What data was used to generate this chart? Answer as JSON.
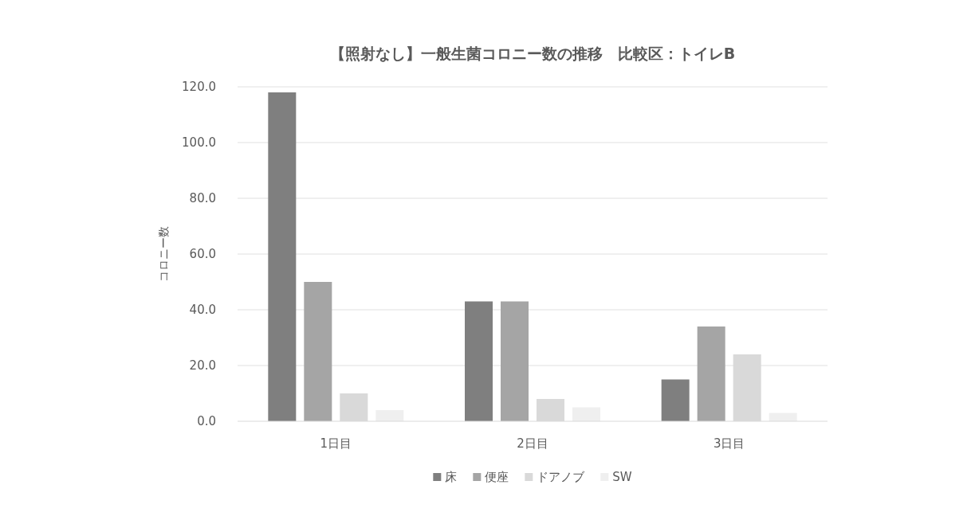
{
  "chart_data": {
    "type": "bar",
    "title": "【照射なし】一般生菌コロニー数の推移　比較区：トイレB",
    "ylabel": "コロニー数",
    "categories": [
      "1日目",
      "2日目",
      "3日目"
    ],
    "series": [
      {
        "name": "床",
        "color": "#7f7f7f",
        "values": [
          118,
          43,
          15
        ]
      },
      {
        "name": "便座",
        "color": "#a5a5a5",
        "values": [
          50,
          43,
          34
        ]
      },
      {
        "name": "ドアノブ",
        "color": "#d9d9d9",
        "values": [
          10,
          8,
          24
        ]
      },
      {
        "name": "SW",
        "color": "#efefef",
        "values": [
          4,
          5,
          3
        ]
      }
    ],
    "ylim": [
      0,
      120
    ],
    "yticks": [
      {
        "value": 0,
        "label": "0.0"
      },
      {
        "value": 20,
        "label": "20.0"
      },
      {
        "value": 40,
        "label": "40.0"
      },
      {
        "value": 60,
        "label": "60.0"
      },
      {
        "value": 80,
        "label": "80.0"
      },
      {
        "value": 100,
        "label": "100.0"
      },
      {
        "value": 120,
        "label": "120.0"
      }
    ],
    "grid": "y",
    "legend": "bottom"
  }
}
